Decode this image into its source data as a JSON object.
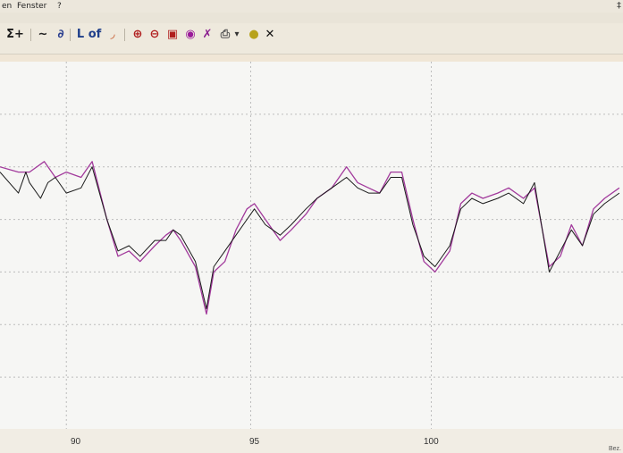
{
  "menubar": {
    "items": [
      "en",
      "Fenster",
      "?"
    ],
    "pin_glyph": "‡"
  },
  "toolbar": {
    "buttons": [
      {
        "name": "sum-plus-icon",
        "glyph": "Σ+",
        "color": "#1b1b1b"
      },
      {
        "name": "smooth-curve-icon",
        "glyph": "∼",
        "color": "#222222"
      },
      {
        "name": "chart-mode-icon",
        "glyph": "∂",
        "color": "#2a3f8f"
      },
      {
        "name": "axis-l-icon",
        "glyph": "L",
        "color": "#1f3f8a"
      },
      {
        "name": "of-icon",
        "glyph": "of",
        "color": "#1f3f8a"
      },
      {
        "name": "angle-icon",
        "glyph": "◞",
        "color": "#c24a1a"
      },
      {
        "name": "zoom-in-icon",
        "glyph": "⊕",
        "color": "#b01d1d"
      },
      {
        "name": "zoom-out-icon",
        "glyph": "⊖",
        "color": "#b01d1d"
      },
      {
        "name": "zoom-box-icon",
        "glyph": "▣",
        "color": "#b01d1d"
      },
      {
        "name": "view-icon",
        "glyph": "◉",
        "color": "#9a1a9a"
      },
      {
        "name": "cut-icon",
        "glyph": "✗",
        "color": "#8a1f8f"
      },
      {
        "name": "print-icon",
        "glyph": "⎙",
        "color": "#555555"
      },
      {
        "name": "dropdown-caret-icon",
        "glyph": "▾",
        "color": "#333333"
      },
      {
        "name": "color-icon",
        "glyph": "●",
        "color": "#b7a21a"
      },
      {
        "name": "close-icon",
        "glyph": "✕",
        "color": "#111111"
      }
    ]
  },
  "colors": {
    "series_purple": "#a23a9c",
    "series_black": "#1a1a1a",
    "grid": "#bcbcbc",
    "plot_bg": "#f6f6f4"
  },
  "axis": {
    "tick_labels": [
      "90",
      "95",
      "100"
    ],
    "corner_label": "Bez."
  },
  "chart_data": {
    "type": "line",
    "x_ticks": [
      90,
      95,
      100
    ],
    "xlim": [
      88.1,
      105.0
    ],
    "ylim": [
      -2.0,
      5.0
    ],
    "grid": true,
    "series": [
      {
        "x": [
          88.1,
          88.6,
          88.9,
          89.3,
          89.6,
          89.9,
          90.3,
          90.6,
          91.0,
          91.3,
          91.6,
          91.9,
          92.3,
          92.6,
          92.8,
          93.0,
          93.4,
          93.7,
          93.9,
          94.2,
          94.5,
          94.8,
          95.0,
          95.3,
          95.7,
          96.0,
          96.4,
          96.7,
          97.1,
          97.5,
          97.8,
          98.1,
          98.4,
          98.7,
          99.0,
          99.3,
          99.6,
          99.9,
          100.3,
          100.6,
          100.9,
          101.2,
          101.6,
          101.9,
          102.3,
          102.6,
          103.0,
          103.3,
          103.6,
          103.9,
          104.2,
          104.5,
          104.9
        ],
        "y": [
          3.0,
          2.9,
          2.9,
          3.1,
          2.8,
          2.9,
          2.8,
          3.1,
          2.0,
          1.3,
          1.4,
          1.2,
          1.5,
          1.7,
          1.8,
          1.6,
          1.1,
          0.2,
          1.0,
          1.2,
          1.8,
          2.2,
          2.3,
          2.0,
          1.6,
          1.8,
          2.1,
          2.4,
          2.6,
          3.0,
          2.7,
          2.6,
          2.5,
          2.9,
          2.9,
          2.0,
          1.2,
          1.0,
          1.4,
          2.3,
          2.5,
          2.4,
          2.5,
          2.6,
          2.4,
          2.6,
          1.1,
          1.3,
          1.9,
          1.5,
          2.2,
          2.4,
          2.6
        ]
      },
      {
        "x": [
          88.1,
          88.6,
          88.8,
          88.9,
          89.2,
          89.4,
          89.6,
          89.9,
          90.3,
          90.6,
          91.0,
          91.3,
          91.6,
          91.9,
          92.3,
          92.6,
          92.8,
          93.0,
          93.4,
          93.7,
          93.9,
          94.2,
          94.5,
          94.8,
          95.0,
          95.3,
          95.7,
          96.0,
          96.4,
          96.7,
          97.1,
          97.5,
          97.8,
          98.1,
          98.4,
          98.7,
          99.0,
          99.3,
          99.6,
          99.9,
          100.3,
          100.6,
          100.9,
          101.2,
          101.6,
          101.9,
          102.3,
          102.6,
          103.0,
          103.3,
          103.6,
          103.9,
          104.2,
          104.5,
          104.9
        ],
        "y": [
          2.9,
          2.5,
          2.9,
          2.7,
          2.4,
          2.7,
          2.8,
          2.5,
          2.6,
          3.0,
          2.0,
          1.4,
          1.5,
          1.3,
          1.6,
          1.6,
          1.8,
          1.7,
          1.2,
          0.3,
          1.1,
          1.4,
          1.7,
          2.0,
          2.2,
          1.9,
          1.7,
          1.9,
          2.2,
          2.4,
          2.6,
          2.8,
          2.6,
          2.5,
          2.5,
          2.8,
          2.8,
          1.9,
          1.3,
          1.1,
          1.5,
          2.2,
          2.4,
          2.3,
          2.4,
          2.5,
          2.3,
          2.7,
          1.0,
          1.4,
          1.8,
          1.5,
          2.1,
          2.3,
          2.5
        ]
      }
    ]
  }
}
